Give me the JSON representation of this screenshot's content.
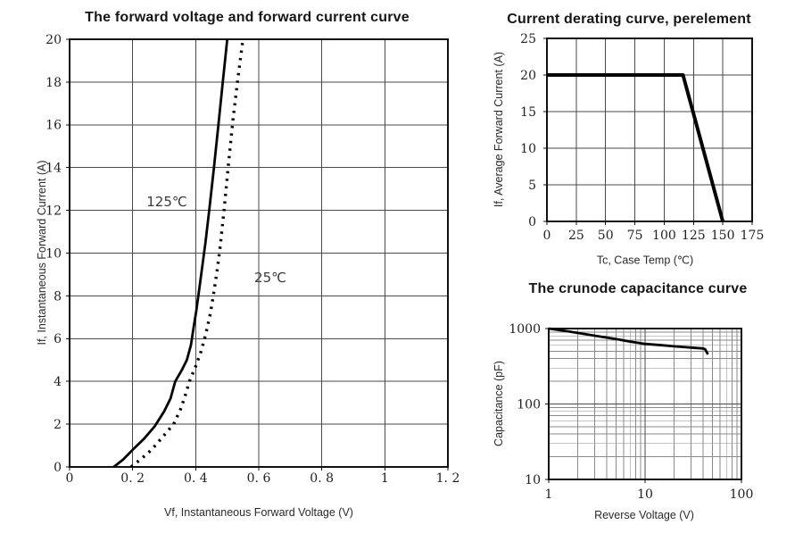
{
  "chart_data": [
    {
      "type": "line",
      "title": "The forward voltage and forward current curve",
      "xlabel": "Vf, Instantaneous Forward Voltage (V)",
      "ylabel": "If, Instantaneous Forward Current (A)",
      "grid": true,
      "legend_position": "inline",
      "x_axis": {
        "scale": "linear",
        "min": 0,
        "max": 1.2,
        "tick_values": [
          0,
          0.2,
          0.4,
          0.6,
          0.8,
          1,
          1.2
        ],
        "tick_labels": [
          "0",
          "0. 2",
          "0. 4",
          "0. 6",
          "0. 8",
          "1",
          "1. 2"
        ]
      },
      "y_axis": {
        "scale": "linear",
        "min": 0,
        "max": 20,
        "tick_values": [
          0,
          2,
          4,
          6,
          8,
          10,
          12,
          14,
          16,
          18,
          20
        ],
        "tick_labels": [
          "0",
          "2",
          "4",
          "6",
          "8",
          "10",
          "12",
          "14",
          "16",
          "18",
          "20"
        ]
      },
      "series": [
        {
          "name": "125℃",
          "line": "solid",
          "points": [
            [
              0.14,
              0
            ],
            [
              0.17,
              0.35
            ],
            [
              0.2,
              0.8
            ],
            [
              0.235,
              1.3
            ],
            [
              0.27,
              1.9
            ],
            [
              0.3,
              2.6
            ],
            [
              0.32,
              3.2
            ],
            [
              0.335,
              4.0
            ],
            [
              0.355,
              4.5
            ],
            [
              0.372,
              5.0
            ],
            [
              0.385,
              5.7
            ],
            [
              0.393,
              6.5
            ],
            [
              0.402,
              7.3
            ],
            [
              0.412,
              8.4
            ],
            [
              0.422,
              9.5
            ],
            [
              0.431,
              10.5
            ],
            [
              0.443,
              12
            ],
            [
              0.458,
              14
            ],
            [
              0.472,
              16
            ],
            [
              0.486,
              18
            ],
            [
              0.5,
              20
            ]
          ]
        },
        {
          "name": "25℃",
          "line": "dashed",
          "points": [
            [
              0.195,
              0
            ],
            [
              0.225,
              0.35
            ],
            [
              0.26,
              0.8
            ],
            [
              0.295,
              1.4
            ],
            [
              0.33,
              2.0
            ],
            [
              0.352,
              2.7
            ],
            [
              0.366,
              3.3
            ],
            [
              0.38,
              4.0
            ],
            [
              0.4,
              4.7
            ],
            [
              0.417,
              5.4
            ],
            [
              0.432,
              6.2
            ],
            [
              0.447,
              7.2
            ],
            [
              0.458,
              8.2
            ],
            [
              0.468,
              9.2
            ],
            [
              0.477,
              10.2
            ],
            [
              0.49,
              12
            ],
            [
              0.503,
              14
            ],
            [
              0.518,
              16.2
            ],
            [
              0.534,
              18.2
            ],
            [
              0.55,
              20
            ]
          ]
        }
      ]
    },
    {
      "type": "line",
      "title": "Current derating curve, perelement",
      "xlabel": "Tc, Case Temp (℃)",
      "ylabel": "If, Average Forward Current (A)",
      "grid": true,
      "x_axis": {
        "scale": "linear",
        "min": 0,
        "max": 175,
        "tick_values": [
          0,
          25,
          50,
          75,
          100,
          125,
          150,
          175
        ],
        "tick_labels": [
          "0",
          "25",
          "50",
          "75",
          "100",
          "125",
          "150",
          "175"
        ]
      },
      "y_axis": {
        "scale": "linear",
        "min": 0,
        "max": 25,
        "tick_values": [
          0,
          5,
          10,
          15,
          20,
          25
        ],
        "tick_labels": [
          "0",
          "5",
          "10",
          "15",
          "20",
          "25"
        ]
      },
      "series": [
        {
          "line": "solid",
          "points": [
            [
              0,
              20
            ],
            [
              116,
              20
            ],
            [
              150,
              0
            ]
          ]
        }
      ]
    },
    {
      "type": "line",
      "title": "The crunode capacitance curve",
      "xlabel": "Reverse Voltage (V)",
      "ylabel": "Capacitance (pF)",
      "grid": true,
      "x_axis": {
        "scale": "log",
        "min": 1,
        "max": 100,
        "tick_values": [
          1,
          10,
          100
        ],
        "tick_labels": [
          "1",
          "10",
          "100"
        ]
      },
      "y_axis": {
        "scale": "log",
        "min": 10,
        "max": 1000,
        "tick_values": [
          10,
          100,
          1000
        ],
        "tick_labels": [
          "10",
          "100",
          "1000"
        ]
      },
      "series": [
        {
          "line": "solid",
          "points": [
            [
              1,
              1000
            ],
            [
              1.5,
              930
            ],
            [
              2,
              875
            ],
            [
              3,
              805
            ],
            [
              5,
              725
            ],
            [
              7,
              672
            ],
            [
              10,
              625
            ],
            [
              15,
              600
            ],
            [
              20,
              582
            ],
            [
              30,
              560
            ],
            [
              40,
              545
            ],
            [
              42,
              532
            ],
            [
              45,
              455
            ]
          ]
        }
      ]
    }
  ]
}
